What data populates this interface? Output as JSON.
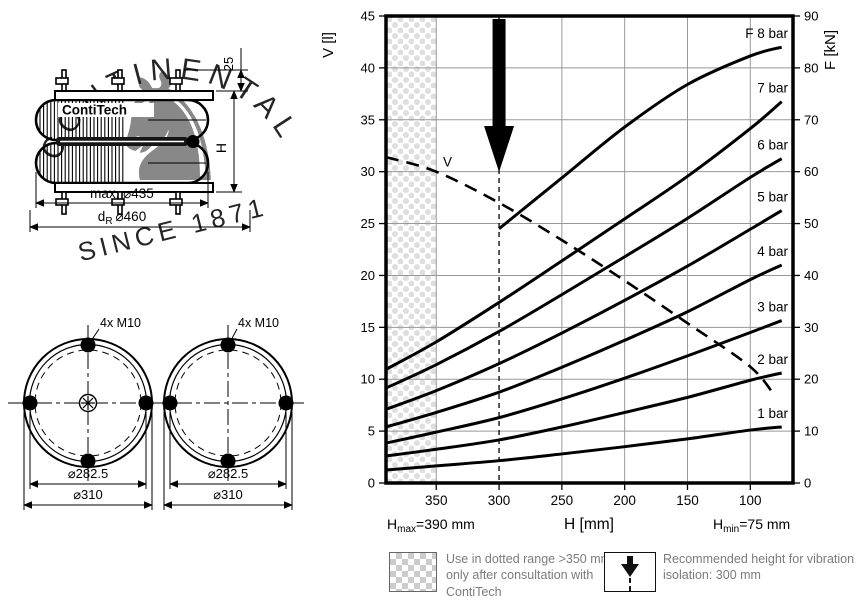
{
  "side_view": {
    "brand": "ContiTech",
    "dim_stud": "25",
    "dim_height": "H",
    "dim_max_diameter": "max. ⌀435",
    "dim_ring": {
      "base": "d",
      "sub": "R",
      "value": "⌀460"
    },
    "watermark_arc": "CONTINENTAL",
    "watermark_bottom": "SINCE 1871",
    "watermark_horse": "♞"
  },
  "top_view": {
    "left": {
      "bolt_label": "4x M10",
      "bolt_circle_dim": "⌀282.5",
      "outer_dim": "⌀310"
    },
    "right": {
      "bolt_label": "4x M10",
      "bolt_circle_dim": "⌀282.5",
      "outer_dim": "⌀310"
    }
  },
  "chart": {
    "y_left_title": "V [l]",
    "y_right_title": "F [kN]",
    "x_title": "H [mm]",
    "h_max": {
      "base": "H",
      "sub": "max",
      "rest": "=390 mm"
    },
    "h_min": {
      "base": "H",
      "sub": "min",
      "rest": "=75 mm"
    }
  },
  "chart_data": {
    "type": "line",
    "x_axis": {
      "label": "H [mm]",
      "min": 66,
      "max": 390,
      "reversed": true,
      "ticks": [
        350,
        300,
        250,
        200,
        150,
        100
      ]
    },
    "y_left": {
      "label": "V [l]",
      "min": 0,
      "max": 45,
      "ticks": [
        0,
        5,
        10,
        15,
        20,
        25,
        30,
        35,
        40,
        45
      ]
    },
    "y_right": {
      "label": "F [kN]",
      "min": 0,
      "max": 90,
      "ticks": [
        0,
        10,
        20,
        30,
        40,
        50,
        60,
        70,
        80,
        90
      ]
    },
    "grid": true,
    "colors": {
      "curve": "#000000",
      "grid": "#999999",
      "dots": "#dedede"
    },
    "annotations": {
      "dotted_region_h": [
        390,
        350
      ],
      "recommended_height_h": 300,
      "h_max_mm": 390,
      "h_min_mm": 75
    },
    "series": [
      {
        "label": "1 bar",
        "pressure_bar": 1,
        "axis": "right",
        "unit": "kN",
        "line": "solid",
        "h_mm": [
          390,
          350,
          300,
          250,
          200,
          150,
          100,
          75
        ],
        "values": [
          2.5,
          3.3,
          4.3,
          5.6,
          7.0,
          8.5,
          10.2,
          10.8
        ]
      },
      {
        "label": "2 bar",
        "pressure_bar": 2,
        "axis": "right",
        "unit": "kN",
        "line": "solid",
        "h_mm": [
          390,
          350,
          300,
          250,
          200,
          150,
          100,
          75
        ],
        "values": [
          5.2,
          6.5,
          8.3,
          10.8,
          13.6,
          16.5,
          19.8,
          21.2
        ]
      },
      {
        "label": "3 bar",
        "pressure_bar": 3,
        "axis": "right",
        "unit": "kN",
        "line": "solid",
        "h_mm": [
          390,
          350,
          300,
          250,
          200,
          150,
          100,
          75
        ],
        "values": [
          7.7,
          9.8,
          12.6,
          16.2,
          20.2,
          24.5,
          29.0,
          31.3
        ]
      },
      {
        "label": "4 bar",
        "pressure_bar": 4,
        "axis": "right",
        "unit": "kN",
        "line": "solid",
        "h_mm": [
          390,
          350,
          300,
          250,
          200,
          150,
          100,
          75
        ],
        "values": [
          10.8,
          13.6,
          17.5,
          22.3,
          27.5,
          33.0,
          39.2,
          42.0
        ]
      },
      {
        "label": "5 bar",
        "pressure_bar": 5,
        "axis": "right",
        "unit": "kN",
        "line": "solid",
        "h_mm": [
          390,
          350,
          300,
          250,
          200,
          150,
          100,
          75
        ],
        "values": [
          14.2,
          17.8,
          23.0,
          28.9,
          35.2,
          41.8,
          48.9,
          52.5
        ]
      },
      {
        "label": "6 bar",
        "pressure_bar": 6,
        "axis": "right",
        "unit": "kN",
        "line": "solid",
        "h_mm": [
          390,
          350,
          300,
          250,
          200,
          150,
          100,
          75
        ],
        "values": [
          18.3,
          22.8,
          29.2,
          36.3,
          43.6,
          51.0,
          58.9,
          62.5
        ]
      },
      {
        "label": "7 bar",
        "pressure_bar": 7,
        "axis": "right",
        "unit": "kN",
        "line": "solid",
        "h_mm": [
          390,
          350,
          300,
          250,
          200,
          150,
          100,
          75
        ],
        "values": [
          21.9,
          27.2,
          34.8,
          42.8,
          50.9,
          59.1,
          68.3,
          73.5
        ]
      },
      {
        "label": "F 8 bar",
        "pressure_bar": 8,
        "axis": "right",
        "unit": "kN",
        "line": "solid",
        "h_mm": [
          300,
          250,
          200,
          150,
          100,
          75
        ],
        "values": [
          49.0,
          58.8,
          68.6,
          76.8,
          82.3,
          84.0
        ]
      },
      {
        "label": "V",
        "axis": "left",
        "unit": "l",
        "line": "dashed",
        "label_h": 347,
        "h_mm": [
          390,
          350,
          300,
          250,
          200,
          150,
          100,
          80
        ],
        "values": [
          31.4,
          30.0,
          27.0,
          23.4,
          19.5,
          15.4,
          11.2,
          8.3
        ]
      }
    ]
  },
  "legend": {
    "items": [
      {
        "symbol": "dotted-swatch",
        "text": "Use in dotted range >350 mm only after consultation with ContiTech"
      },
      {
        "symbol": "down-arrow",
        "text": "Recommended height for vibration isolation: 300 mm"
      }
    ]
  }
}
